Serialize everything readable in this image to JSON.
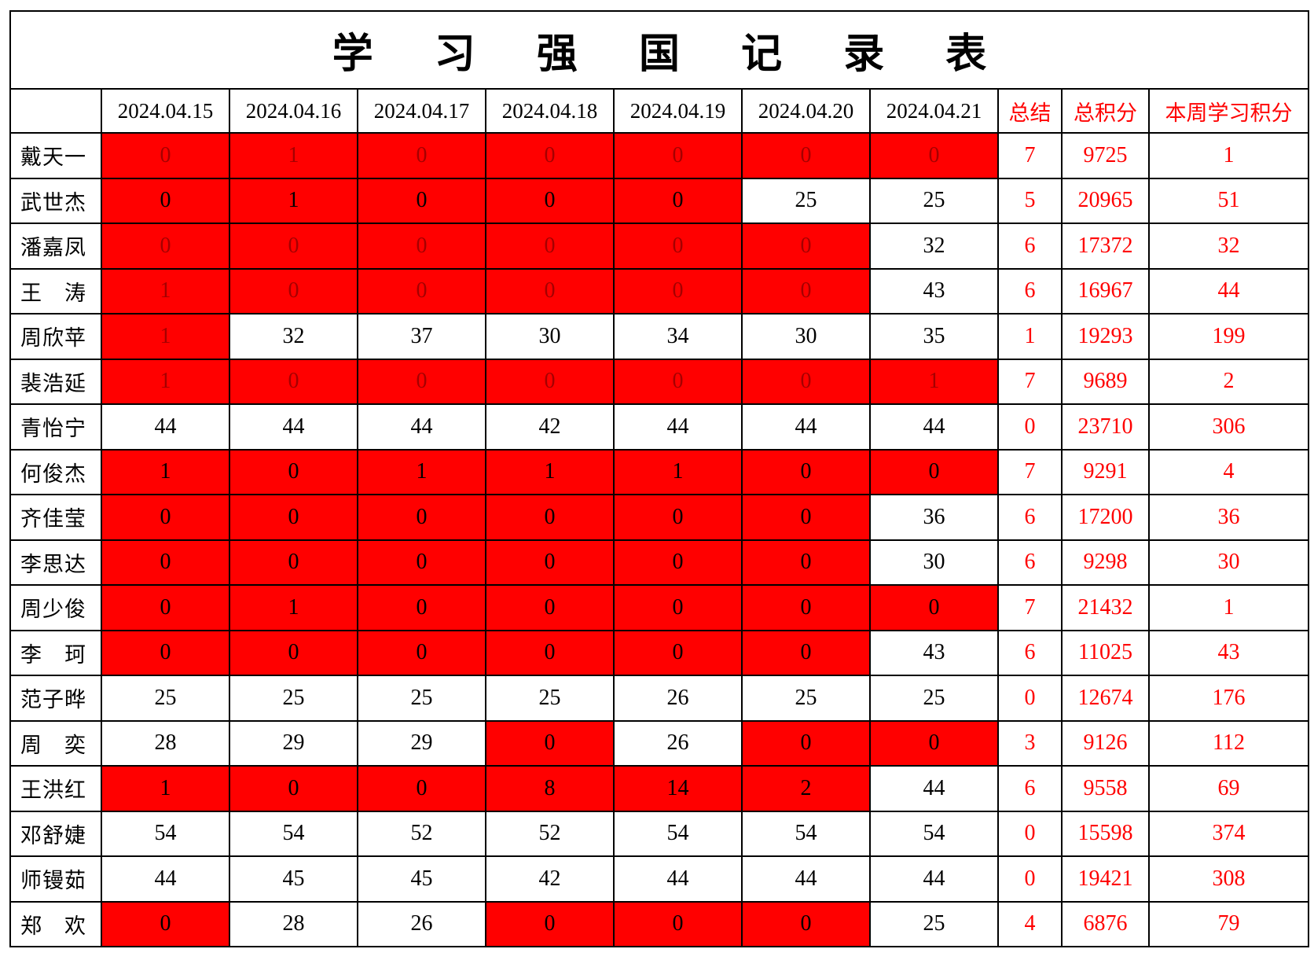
{
  "title": "学 习 强 国 记 录 表",
  "colors": {
    "highlight": "#ff0000",
    "summary_text": "#ff0000",
    "muted_text": "#a50000"
  },
  "headers": {
    "name": "",
    "dates": [
      "2024.04.15",
      "2024.04.16",
      "2024.04.17",
      "2024.04.18",
      "2024.04.19",
      "2024.04.20",
      "2024.04.21"
    ],
    "summary": "总结",
    "total": "总积分",
    "weekly": "本周学习积分"
  },
  "rows": [
    {
      "name": "戴天一",
      "muted": true,
      "values": [
        "0",
        "1",
        "0",
        "0",
        "0",
        "0",
        "0"
      ],
      "highlight": [
        1,
        1,
        1,
        1,
        1,
        1,
        1
      ],
      "summary": "7",
      "total": "9725",
      "weekly": "1"
    },
    {
      "name": "武世杰",
      "muted": false,
      "values": [
        "0",
        "1",
        "0",
        "0",
        "0",
        "25",
        "25"
      ],
      "highlight": [
        1,
        1,
        1,
        1,
        1,
        0,
        0
      ],
      "summary": "5",
      "total": "20965",
      "weekly": "51"
    },
    {
      "name": "潘嘉凤",
      "muted": true,
      "values": [
        "0",
        "0",
        "0",
        "0",
        "0",
        "0",
        "32"
      ],
      "highlight": [
        1,
        1,
        1,
        1,
        1,
        1,
        0
      ],
      "summary": "6",
      "total": "17372",
      "weekly": "32"
    },
    {
      "name": "王　涛",
      "muted": true,
      "values": [
        "1",
        "0",
        "0",
        "0",
        "0",
        "0",
        "43"
      ],
      "highlight": [
        1,
        1,
        1,
        1,
        1,
        1,
        0
      ],
      "summary": "6",
      "total": "16967",
      "weekly": "44"
    },
    {
      "name": "周欣苹",
      "muted": true,
      "values": [
        "1",
        "32",
        "37",
        "30",
        "34",
        "30",
        "35"
      ],
      "highlight": [
        1,
        0,
        0,
        0,
        0,
        0,
        0
      ],
      "summary": "1",
      "total": "19293",
      "weekly": "199"
    },
    {
      "name": "裴浩延",
      "muted": true,
      "values": [
        "1",
        "0",
        "0",
        "0",
        "0",
        "0",
        "1"
      ],
      "highlight": [
        1,
        1,
        1,
        1,
        1,
        1,
        1
      ],
      "summary": "7",
      "total": "9689",
      "weekly": "2"
    },
    {
      "name": "青怡宁",
      "muted": false,
      "values": [
        "44",
        "44",
        "44",
        "42",
        "44",
        "44",
        "44"
      ],
      "highlight": [
        0,
        0,
        0,
        0,
        0,
        0,
        0
      ],
      "summary": "0",
      "total": "23710",
      "weekly": "306"
    },
    {
      "name": "何俊杰",
      "muted": false,
      "values": [
        "1",
        "0",
        "1",
        "1",
        "1",
        "0",
        "0"
      ],
      "highlight": [
        1,
        1,
        1,
        1,
        1,
        1,
        1
      ],
      "summary": "7",
      "total": "9291",
      "weekly": "4"
    },
    {
      "name": "齐佳莹",
      "muted": false,
      "values": [
        "0",
        "0",
        "0",
        "0",
        "0",
        "0",
        "36"
      ],
      "highlight": [
        1,
        1,
        1,
        1,
        1,
        1,
        0
      ],
      "summary": "6",
      "total": "17200",
      "weekly": "36"
    },
    {
      "name": "李思达",
      "muted": false,
      "values": [
        "0",
        "0",
        "0",
        "0",
        "0",
        "0",
        "30"
      ],
      "highlight": [
        1,
        1,
        1,
        1,
        1,
        1,
        0
      ],
      "summary": "6",
      "total": "9298",
      "weekly": "30"
    },
    {
      "name": "周少俊",
      "muted": false,
      "values": [
        "0",
        "1",
        "0",
        "0",
        "0",
        "0",
        "0"
      ],
      "highlight": [
        1,
        1,
        1,
        1,
        1,
        1,
        1
      ],
      "summary": "7",
      "total": "21432",
      "weekly": "1"
    },
    {
      "name": "李　珂",
      "muted": false,
      "values": [
        "0",
        "0",
        "0",
        "0",
        "0",
        "0",
        "43"
      ],
      "highlight": [
        1,
        1,
        1,
        1,
        1,
        1,
        0
      ],
      "summary": "6",
      "total": "11025",
      "weekly": "43"
    },
    {
      "name": "范子晔",
      "muted": false,
      "values": [
        "25",
        "25",
        "25",
        "25",
        "26",
        "25",
        "25"
      ],
      "highlight": [
        0,
        0,
        0,
        0,
        0,
        0,
        0
      ],
      "summary": "0",
      "total": "12674",
      "weekly": "176"
    },
    {
      "name": "周　奕",
      "muted": false,
      "values": [
        "28",
        "29",
        "29",
        "0",
        "26",
        "0",
        "0"
      ],
      "highlight": [
        0,
        0,
        0,
        1,
        0,
        1,
        1
      ],
      "summary": "3",
      "total": "9126",
      "weekly": "112"
    },
    {
      "name": "王洪红",
      "muted": false,
      "values": [
        "1",
        "0",
        "0",
        "8",
        "14",
        "2",
        "44"
      ],
      "highlight": [
        1,
        1,
        1,
        1,
        1,
        1,
        0
      ],
      "summary": "6",
      "total": "9558",
      "weekly": "69"
    },
    {
      "name": "邓舒婕",
      "muted": false,
      "values": [
        "54",
        "54",
        "52",
        "52",
        "54",
        "54",
        "54"
      ],
      "highlight": [
        0,
        0,
        0,
        0,
        0,
        0,
        0
      ],
      "summary": "0",
      "total": "15598",
      "weekly": "374"
    },
    {
      "name": "师镘茹",
      "muted": false,
      "values": [
        "44",
        "45",
        "45",
        "42",
        "44",
        "44",
        "44"
      ],
      "highlight": [
        0,
        0,
        0,
        0,
        0,
        0,
        0
      ],
      "summary": "0",
      "total": "19421",
      "weekly": "308"
    },
    {
      "name": "郑　欢",
      "muted": false,
      "values": [
        "0",
        "28",
        "26",
        "0",
        "0",
        "0",
        "25"
      ],
      "highlight": [
        1,
        0,
        0,
        1,
        1,
        1,
        0
      ],
      "summary": "4",
      "total": "6876",
      "weekly": "79"
    }
  ]
}
